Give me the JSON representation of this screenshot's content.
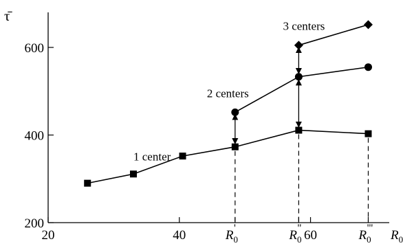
{
  "chart_data": {
    "type": "line",
    "ylabel": "τ̄",
    "xlabel": "R",
    "xlabel_sub": "0",
    "xlim": [
      20,
      72
    ],
    "ylim": [
      200,
      680
    ],
    "grid": false,
    "x_ticks": [
      {
        "value": 20,
        "label": "20"
      },
      {
        "value": 40,
        "label": "40"
      },
      {
        "value": 60,
        "label": "60"
      }
    ],
    "y_ticks": [
      {
        "value": 200,
        "label": "200"
      },
      {
        "value": 400,
        "label": "400"
      },
      {
        "value": 600,
        "label": "600"
      }
    ],
    "special_x": [
      {
        "value": 48.5,
        "base": "R",
        "sub": "0",
        "prime": "'"
      },
      {
        "value": 58.2,
        "base": "R",
        "sub": "0",
        "prime": "''"
      },
      {
        "value": 68.8,
        "base": "R",
        "sub": "0",
        "prime": "'''"
      }
    ],
    "series": [
      {
        "marker": "square",
        "points": [
          [
            26,
            290
          ],
          [
            33,
            311
          ],
          [
            40.5,
            352
          ],
          [
            48.5,
            373
          ],
          [
            58.2,
            411
          ],
          [
            68.8,
            403
          ]
        ]
      },
      {
        "marker": "circle",
        "points": [
          [
            48.5,
            452
          ],
          [
            58.2,
            533
          ],
          [
            68.8,
            555
          ]
        ]
      },
      {
        "marker": "diamond",
        "points": [
          [
            58.2,
            605
          ],
          [
            68.8,
            652
          ]
        ]
      }
    ],
    "annotations": [
      {
        "text": "1 center",
        "x": 33,
        "y": 342
      },
      {
        "text": "2 centers",
        "x": 44.2,
        "y": 486
      },
      {
        "text": "3 centers",
        "x": 55.8,
        "y": 640
      }
    ],
    "double_arrows": [
      {
        "x": 48.5,
        "y_from": 380,
        "y_to": 447
      },
      {
        "x": 58.2,
        "y_from": 418,
        "y_to": 526
      },
      {
        "x": 58.2,
        "y_from": 540,
        "y_to": 600
      }
    ],
    "dashed_drops": [
      {
        "x": 48.5,
        "y_from": 373
      },
      {
        "x": 58.2,
        "y_from": 411
      },
      {
        "x": 68.8,
        "y_from": 403
      }
    ]
  }
}
